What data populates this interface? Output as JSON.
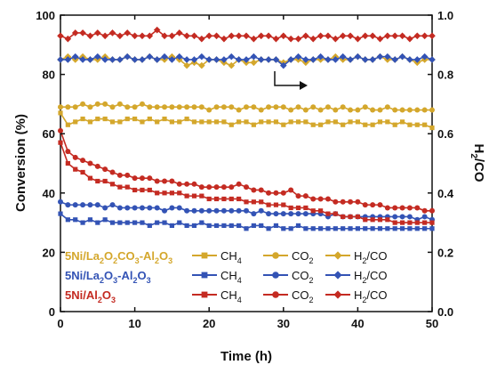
{
  "chart_data": {
    "type": "line",
    "xlabel": "Time (h)",
    "ylabel": "Conversion (%)",
    "y2label": "H2/CO",
    "xlim": [
      0,
      50
    ],
    "ylim": [
      0,
      100
    ],
    "y2lim": [
      0,
      1.0
    ],
    "xticks": [
      0,
      10,
      20,
      30,
      40,
      50
    ],
    "yticks": [
      0,
      20,
      40,
      60,
      80,
      100
    ],
    "y2ticks": [
      0.0,
      0.2,
      0.4,
      0.6,
      0.8,
      1.0
    ],
    "legend_position": "bottom-left",
    "groups": [
      {
        "catalyst": "5Ni/La2O2CO3-Al2O3",
        "color": "#d4a72c",
        "series": [
          {
            "name": "CH4",
            "marker": "square",
            "axis": "left",
            "x": [
              0,
              1,
              2,
              3,
              4,
              5,
              6,
              7,
              8,
              9,
              10,
              11,
              12,
              13,
              14,
              15,
              16,
              17,
              18,
              19,
              20,
              21,
              22,
              23,
              24,
              25,
              26,
              27,
              28,
              29,
              30,
              31,
              32,
              33,
              34,
              35,
              36,
              37,
              38,
              39,
              40,
              41,
              42,
              43,
              44,
              45,
              46,
              47,
              48,
              49,
              50
            ],
            "y": [
              67,
              63,
              64,
              65,
              64,
              65,
              65,
              64,
              64,
              65,
              65,
              64,
              65,
              64,
              65,
              64,
              64,
              65,
              64,
              64,
              64,
              64,
              64,
              63,
              64,
              64,
              63,
              64,
              64,
              64,
              63,
              64,
              64,
              64,
              63,
              63,
              64,
              64,
              63,
              64,
              64,
              63,
              63,
              64,
              64,
              63,
              64,
              63,
              63,
              63,
              62
            ]
          },
          {
            "name": "CO2",
            "marker": "circle",
            "axis": "left",
            "x": [
              0,
              1,
              2,
              3,
              4,
              5,
              6,
              7,
              8,
              9,
              10,
              11,
              12,
              13,
              14,
              15,
              16,
              17,
              18,
              19,
              20,
              21,
              22,
              23,
              24,
              25,
              26,
              27,
              28,
              29,
              30,
              31,
              32,
              33,
              34,
              35,
              36,
              37,
              38,
              39,
              40,
              41,
              42,
              43,
              44,
              45,
              46,
              47,
              48,
              49,
              50
            ],
            "y": [
              69,
              69,
              69,
              70,
              69,
              70,
              70,
              69,
              70,
              69,
              69,
              70,
              69,
              69,
              69,
              69,
              69,
              69,
              69,
              69,
              68,
              69,
              69,
              69,
              68,
              69,
              69,
              68,
              69,
              69,
              69,
              68,
              69,
              68,
              69,
              68,
              69,
              68,
              69,
              68,
              68,
              69,
              68,
              68,
              69,
              68,
              68,
              68,
              68,
              68,
              68
            ]
          },
          {
            "name": "H2/CO",
            "marker": "diamond",
            "axis": "right",
            "x": [
              0,
              1,
              2,
              3,
              4,
              5,
              6,
              7,
              8,
              9,
              10,
              11,
              12,
              13,
              14,
              15,
              16,
              17,
              18,
              19,
              20,
              21,
              22,
              23,
              24,
              25,
              26,
              27,
              28,
              29,
              30,
              31,
              32,
              33,
              34,
              35,
              36,
              37,
              38,
              39,
              40,
              41,
              42,
              43,
              44,
              45,
              46,
              47,
              48,
              49,
              50
            ],
            "y": [
              0.85,
              0.86,
              0.85,
              0.86,
              0.85,
              0.85,
              0.86,
              0.85,
              0.85,
              0.86,
              0.85,
              0.85,
              0.86,
              0.85,
              0.85,
              0.86,
              0.85,
              0.83,
              0.84,
              0.83,
              0.85,
              0.85,
              0.84,
              0.83,
              0.85,
              0.84,
              0.84,
              0.85,
              0.85,
              0.85,
              0.84,
              0.85,
              0.85,
              0.84,
              0.85,
              0.85,
              0.85,
              0.86,
              0.85,
              0.85,
              0.86,
              0.85,
              0.85,
              0.86,
              0.85,
              0.85,
              0.86,
              0.85,
              0.84,
              0.85,
              0.85
            ]
          }
        ]
      },
      {
        "catalyst": "5Ni/La2O3-Al2O3",
        "color": "#3353b5",
        "series": [
          {
            "name": "CH4",
            "marker": "square",
            "axis": "left",
            "x": [
              0,
              1,
              2,
              3,
              4,
              5,
              6,
              7,
              8,
              9,
              10,
              11,
              12,
              13,
              14,
              15,
              16,
              17,
              18,
              19,
              20,
              21,
              22,
              23,
              24,
              25,
              26,
              27,
              28,
              29,
              30,
              31,
              32,
              33,
              34,
              35,
              36,
              37,
              38,
              39,
              40,
              41,
              42,
              43,
              44,
              45,
              46,
              47,
              48,
              49,
              50
            ],
            "y": [
              33,
              31,
              31,
              30,
              31,
              30,
              31,
              30,
              30,
              30,
              30,
              30,
              29,
              30,
              30,
              29,
              30,
              29,
              29,
              30,
              29,
              29,
              29,
              29,
              29,
              28,
              29,
              29,
              28,
              29,
              28,
              28,
              29,
              28,
              28,
              28,
              28,
              28,
              28,
              28,
              28,
              28,
              28,
              28,
              28,
              28,
              28,
              28,
              28,
              28,
              28
            ]
          },
          {
            "name": "CO2",
            "marker": "circle",
            "axis": "left",
            "x": [
              0,
              1,
              2,
              3,
              4,
              5,
              6,
              7,
              8,
              9,
              10,
              11,
              12,
              13,
              14,
              15,
              16,
              17,
              18,
              19,
              20,
              21,
              22,
              23,
              24,
              25,
              26,
              27,
              28,
              29,
              30,
              31,
              32,
              33,
              34,
              35,
              36,
              37,
              38,
              39,
              40,
              41,
              42,
              43,
              44,
              45,
              46,
              47,
              48,
              49,
              50
            ],
            "y": [
              37,
              36,
              36,
              36,
              36,
              36,
              35,
              36,
              35,
              35,
              35,
              35,
              35,
              35,
              34,
              35,
              35,
              34,
              34,
              34,
              34,
              34,
              34,
              34,
              34,
              34,
              33,
              34,
              33,
              33,
              33,
              33,
              33,
              33,
              33,
              33,
              32,
              33,
              32,
              32,
              32,
              32,
              32,
              32,
              32,
              32,
              32,
              32,
              31,
              32,
              31
            ]
          },
          {
            "name": "H2/CO",
            "marker": "diamond",
            "axis": "right",
            "x": [
              0,
              1,
              2,
              3,
              4,
              5,
              6,
              7,
              8,
              9,
              10,
              11,
              12,
              13,
              14,
              15,
              16,
              17,
              18,
              19,
              20,
              21,
              22,
              23,
              24,
              25,
              26,
              27,
              28,
              29,
              30,
              31,
              32,
              33,
              34,
              35,
              36,
              37,
              38,
              39,
              40,
              41,
              42,
              43,
              44,
              45,
              46,
              47,
              48,
              49,
              50
            ],
            "y": [
              0.85,
              0.85,
              0.86,
              0.85,
              0.85,
              0.86,
              0.85,
              0.85,
              0.85,
              0.86,
              0.85,
              0.85,
              0.86,
              0.85,
              0.86,
              0.85,
              0.86,
              0.85,
              0.85,
              0.86,
              0.85,
              0.85,
              0.85,
              0.86,
              0.85,
              0.85,
              0.86,
              0.85,
              0.85,
              0.85,
              0.83,
              0.85,
              0.86,
              0.85,
              0.85,
              0.86,
              0.85,
              0.85,
              0.86,
              0.85,
              0.86,
              0.85,
              0.85,
              0.86,
              0.86,
              0.85,
              0.86,
              0.85,
              0.85,
              0.86,
              0.85
            ]
          }
        ]
      },
      {
        "catalyst": "5Ni/Al2O3",
        "color": "#c42b22",
        "series": [
          {
            "name": "CH4",
            "marker": "square",
            "axis": "left",
            "x": [
              0,
              1,
              2,
              3,
              4,
              5,
              6,
              7,
              8,
              9,
              10,
              11,
              12,
              13,
              14,
              15,
              16,
              17,
              18,
              19,
              20,
              21,
              22,
              23,
              24,
              25,
              26,
              27,
              28,
              29,
              30,
              31,
              32,
              33,
              34,
              35,
              36,
              37,
              38,
              39,
              40,
              41,
              42,
              43,
              44,
              45,
              46,
              47,
              48,
              49,
              50
            ],
            "y": [
              57,
              50,
              48,
              47,
              45,
              44,
              44,
              43,
              42,
              42,
              41,
              41,
              41,
              40,
              40,
              40,
              40,
              39,
              39,
              39,
              38,
              38,
              38,
              38,
              38,
              37,
              37,
              37,
              36,
              36,
              36,
              35,
              35,
              35,
              34,
              34,
              33,
              33,
              32,
              32,
              32,
              31,
              31,
              31,
              31,
              30,
              30,
              30,
              30,
              30,
              30
            ]
          },
          {
            "name": "CO2",
            "marker": "circle",
            "axis": "left",
            "x": [
              0,
              1,
              2,
              3,
              4,
              5,
              6,
              7,
              8,
              9,
              10,
              11,
              12,
              13,
              14,
              15,
              16,
              17,
              18,
              19,
              20,
              21,
              22,
              23,
              24,
              25,
              26,
              27,
              28,
              29,
              30,
              31,
              32,
              33,
              34,
              35,
              36,
              37,
              38,
              39,
              40,
              41,
              42,
              43,
              44,
              45,
              46,
              47,
              48,
              49,
              50
            ],
            "y": [
              61,
              54,
              52,
              51,
              50,
              49,
              48,
              47,
              46,
              46,
              45,
              45,
              45,
              44,
              44,
              44,
              43,
              43,
              43,
              42,
              42,
              42,
              42,
              42,
              43,
              42,
              41,
              41,
              40,
              40,
              40,
              41,
              39,
              39,
              38,
              38,
              38,
              37,
              37,
              37,
              37,
              36,
              36,
              36,
              35,
              35,
              35,
              35,
              35,
              34,
              34
            ]
          },
          {
            "name": "H2/CO",
            "marker": "diamond",
            "axis": "right",
            "x": [
              0,
              1,
              2,
              3,
              4,
              5,
              6,
              7,
              8,
              9,
              10,
              11,
              12,
              13,
              14,
              15,
              16,
              17,
              18,
              19,
              20,
              21,
              22,
              23,
              24,
              25,
              26,
              27,
              28,
              29,
              30,
              31,
              32,
              33,
              34,
              35,
              36,
              37,
              38,
              39,
              40,
              41,
              42,
              43,
              44,
              45,
              46,
              47,
              48,
              49,
              50
            ],
            "y": [
              0.93,
              0.92,
              0.94,
              0.94,
              0.93,
              0.94,
              0.93,
              0.94,
              0.93,
              0.94,
              0.93,
              0.93,
              0.93,
              0.95,
              0.93,
              0.93,
              0.94,
              0.93,
              0.93,
              0.92,
              0.93,
              0.93,
              0.92,
              0.93,
              0.93,
              0.93,
              0.92,
              0.93,
              0.93,
              0.92,
              0.93,
              0.92,
              0.92,
              0.93,
              0.92,
              0.93,
              0.93,
              0.92,
              0.93,
              0.93,
              0.92,
              0.93,
              0.93,
              0.92,
              0.93,
              0.93,
              0.93,
              0.92,
              0.93,
              0.93,
              0.93
            ]
          }
        ]
      }
    ]
  }
}
